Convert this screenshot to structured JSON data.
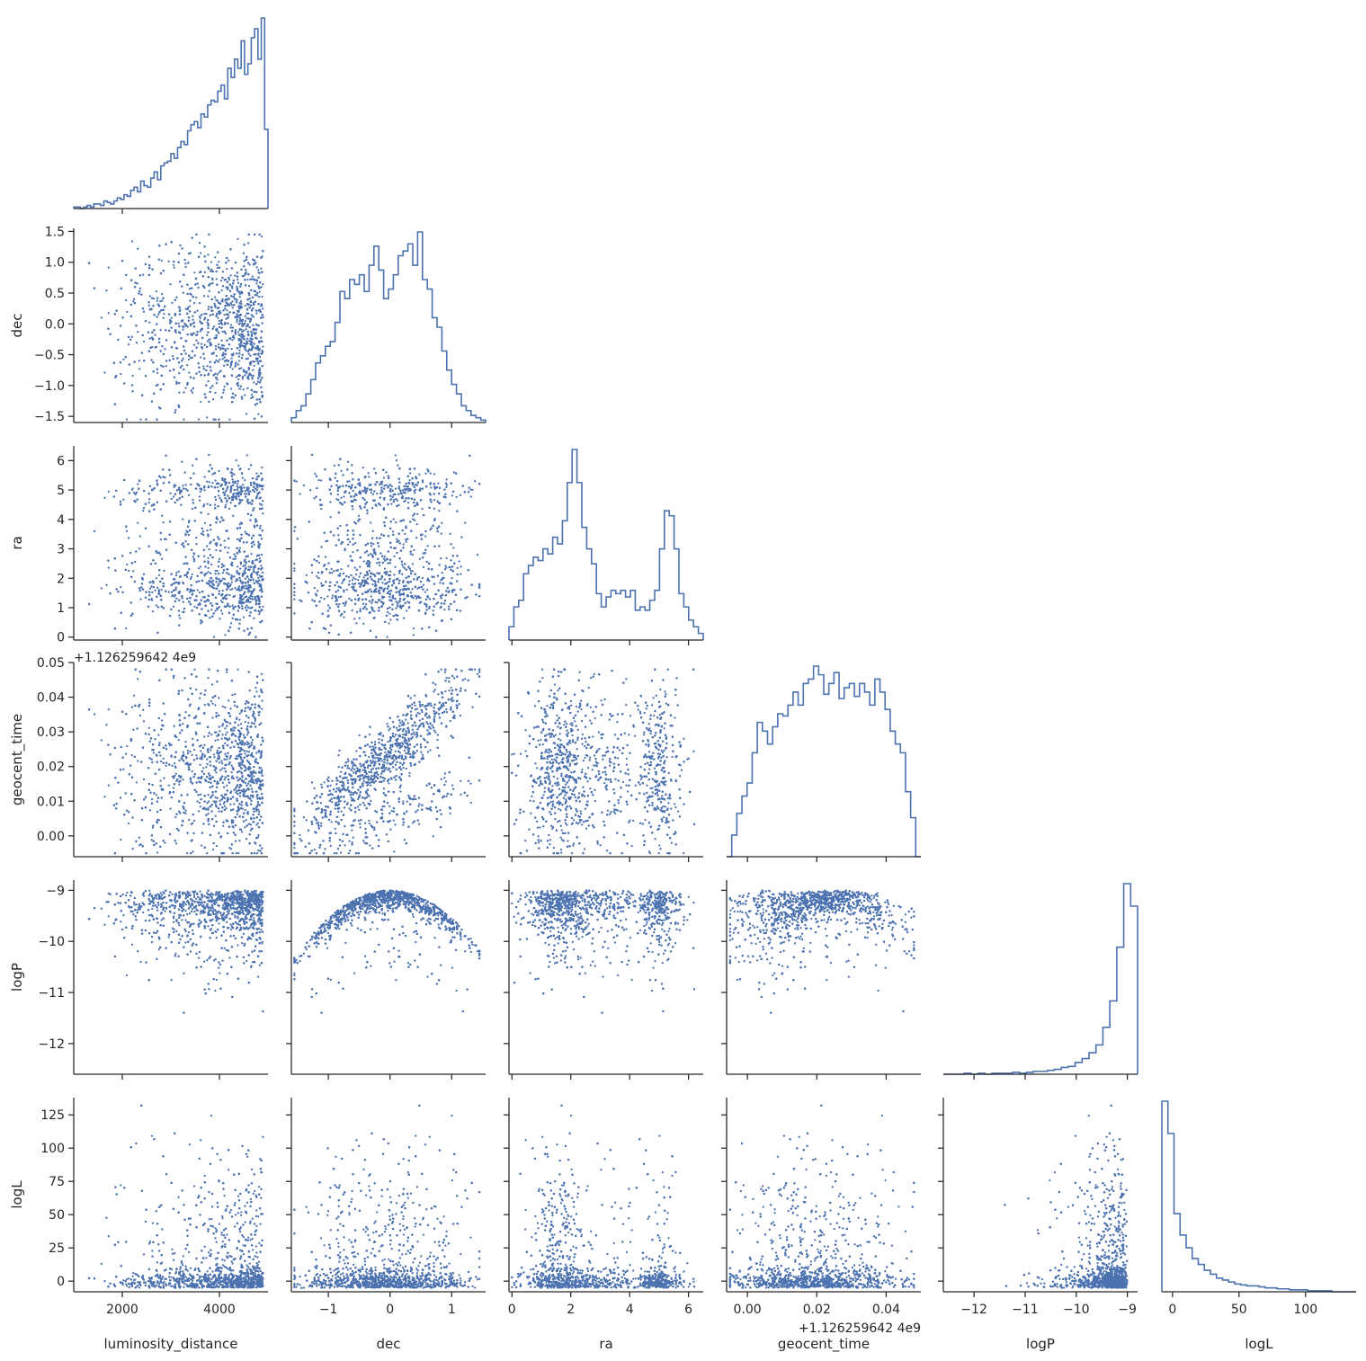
{
  "chart_data": {
    "type": "scatter",
    "subtype": "pairplot-corner",
    "diagonal": "step histogram",
    "marker_color": "#4c72b0",
    "variables": [
      {
        "name": "luminosity_distance",
        "label": "luminosity_distance",
        "range": [
          1000,
          5000
        ],
        "ticks": [
          2000,
          4000
        ],
        "tick_labels": [
          "2000",
          "4000"
        ]
      },
      {
        "name": "dec",
        "label": "dec",
        "range": [
          -1.6,
          1.55
        ],
        "ticks": [
          -1.5,
          -1.0,
          -0.5,
          0.0,
          0.5,
          1.0,
          1.5
        ],
        "tick_labels": [
          "−1.5",
          "−1.0",
          "−0.5",
          "0.0",
          "0.5",
          "1.0",
          "1.5"
        ],
        "x_ticks": [
          -1,
          0,
          1
        ],
        "x_tick_labels": [
          "−1",
          "0",
          "1"
        ]
      },
      {
        "name": "ra",
        "label": "ra",
        "range": [
          -0.1,
          6.5
        ],
        "ticks": [
          0,
          1,
          2,
          3,
          4,
          5,
          6
        ],
        "tick_labels": [
          "0",
          "1",
          "2",
          "3",
          "4",
          "5",
          "6"
        ],
        "x_ticks": [
          0,
          2,
          4,
          6
        ],
        "x_tick_labels": [
          "0",
          "2",
          "4",
          "6"
        ]
      },
      {
        "name": "geocent_time",
        "label": "geocent_time",
        "offset_label": "+1.126259642 4e9",
        "offset_text": "+1.126259642 4e9",
        "range": [
          -0.006,
          0.05
        ],
        "ticks": [
          0.0,
          0.01,
          0.02,
          0.03,
          0.04,
          0.05
        ],
        "tick_labels": [
          "0.00",
          "0.01",
          "0.02",
          "0.03",
          "0.04",
          "0.05"
        ],
        "x_ticks": [
          0.0,
          0.02,
          0.04
        ],
        "x_tick_labels": [
          "0.00",
          "0.02",
          "0.04"
        ]
      },
      {
        "name": "logP",
        "label": "logP",
        "range": [
          -12.6,
          -8.8
        ],
        "ticks": [
          -12,
          -11,
          -10,
          -9
        ],
        "tick_labels": [
          "−12",
          "−11",
          "−10",
          "−9"
        ]
      },
      {
        "name": "logL",
        "label": "logL",
        "range": [
          -8,
          138
        ],
        "ticks": [
          0,
          25,
          50,
          75,
          100,
          125
        ],
        "tick_labels": [
          "0",
          "25",
          "50",
          "75",
          "100",
          "125"
        ],
        "x_ticks": [
          0,
          50,
          100
        ],
        "x_tick_labels": [
          "0",
          "50",
          "100"
        ]
      }
    ],
    "histograms": {
      "luminosity_distance": [
        1,
        1,
        0,
        1,
        2,
        1,
        3,
        3,
        2,
        5,
        4,
        3,
        5,
        7,
        6,
        9,
        8,
        12,
        14,
        11,
        18,
        15,
        14,
        20,
        24,
        19,
        28,
        30,
        31,
        36,
        33,
        40,
        44,
        42,
        51,
        55,
        57,
        53,
        62,
        60,
        68,
        71,
        70,
        77,
        81,
        72,
        92,
        86,
        98,
        92,
        110,
        88,
        95,
        112,
        118,
        98,
        125,
        52
      ],
      "dec": [
        2,
        5,
        7,
        12,
        18,
        25,
        28,
        32,
        34,
        42,
        55,
        52,
        60,
        58,
        62,
        55,
        66,
        74,
        64,
        52,
        56,
        62,
        70,
        72,
        75,
        66,
        80,
        60,
        56,
        44,
        40,
        30,
        22,
        16,
        12,
        7,
        5,
        3,
        2,
        1
      ],
      "ra": [
        8,
        20,
        24,
        40,
        45,
        50,
        48,
        55,
        52,
        62,
        58,
        72,
        95,
        115,
        95,
        68,
        55,
        46,
        28,
        20,
        26,
        30,
        28,
        30,
        26,
        30,
        18,
        20,
        18,
        24,
        30,
        55,
        78,
        75,
        55,
        28,
        20,
        12,
        8,
        4
      ],
      "geocent_time": [
        0,
        10,
        20,
        28,
        34,
        48,
        62,
        58,
        52,
        60,
        66,
        65,
        70,
        76,
        70,
        80,
        82,
        88,
        84,
        75,
        80,
        85,
        73,
        78,
        80,
        74,
        80,
        76,
        70,
        82,
        76,
        68,
        58,
        52,
        48,
        30,
        18,
        0
      ],
      "logP": [
        0,
        0,
        0,
        1,
        0,
        1,
        0,
        1,
        1,
        1,
        2,
        1,
        2,
        3,
        3,
        4,
        5,
        7,
        8,
        12,
        16,
        22,
        30,
        48,
        75,
        130,
        195,
        172
      ],
      "logL": [
        195,
        162,
        80,
        58,
        45,
        34,
        28,
        22,
        18,
        14,
        12,
        10,
        8,
        7,
        6,
        6,
        5,
        4,
        4,
        3,
        3,
        2,
        2,
        2,
        1,
        1,
        1,
        1,
        0,
        0,
        0,
        0
      ]
    },
    "n_samples_drawn": 2500,
    "legend": "none",
    "grid": false
  }
}
